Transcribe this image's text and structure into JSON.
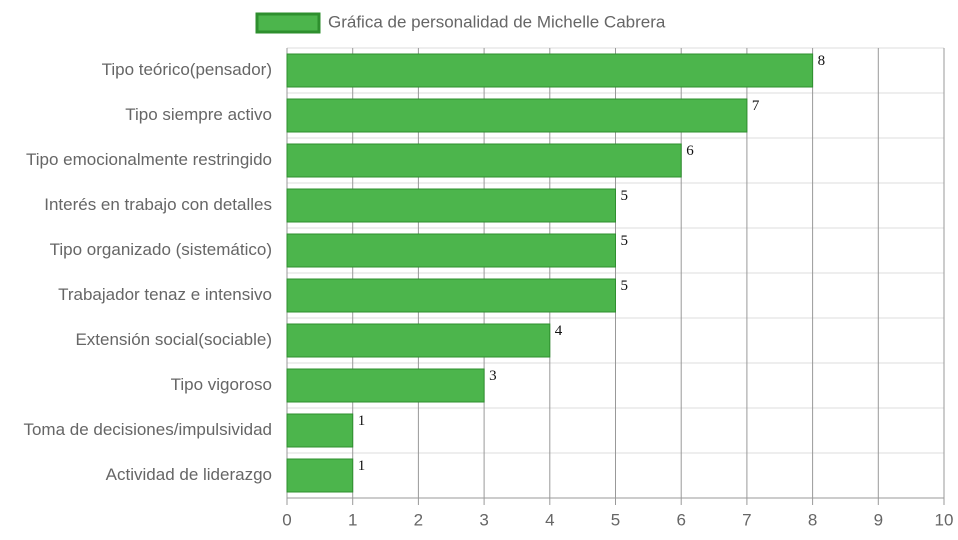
{
  "chart_data": {
    "type": "bar",
    "orientation": "horizontal",
    "categories": [
      "Tipo teórico(pensador)",
      "Tipo siempre activo",
      "Tipo emocionalmente restringido",
      "Interés en trabajo con detalles",
      "Tipo organizado (sistemático)",
      "Trabajador tenaz e intensivo",
      "Extensión social(sociable)",
      "Tipo vigoroso",
      "Toma de decisiones/impulsividad",
      "Actividad de liderazgo"
    ],
    "series": [
      {
        "name": "Gráfica de personalidad de Michelle Cabrera",
        "color": "#4cb54c",
        "border_color": "#2e8f2e",
        "values": [
          8,
          7,
          6,
          5,
          5,
          5,
          4,
          3,
          1,
          1
        ]
      }
    ],
    "xlim": [
      0,
      10
    ],
    "xticks": [
      0,
      1,
      2,
      3,
      4,
      5,
      6,
      7,
      8,
      9,
      10
    ],
    "grid": true,
    "legend": "top"
  }
}
